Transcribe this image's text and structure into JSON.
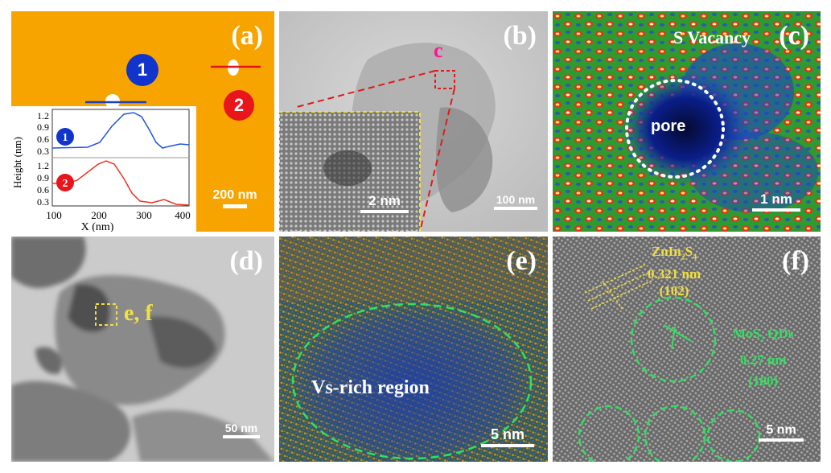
{
  "figure": {
    "panel_a": {
      "label": "(a)",
      "scale": "200 nm",
      "marker_1": "1",
      "marker_2": "2",
      "inset": {
        "ylabel": "Height (nm)",
        "xlabel": "X (nm)",
        "xticks": [
          "100",
          "200",
          "300",
          "400"
        ],
        "yticks_top": [
          "1.2",
          "0.9",
          "0.6",
          "0.3"
        ],
        "yticks_bottom": [
          "1.2",
          "0.9",
          "0.6",
          "0.3"
        ],
        "badge_1": "1",
        "badge_2": "2",
        "colors": {
          "profile_1": "#2255dd",
          "profile_2": "#ee3322"
        }
      }
    },
    "panel_b": {
      "label": "(b)",
      "marker": "c",
      "scale": "100 nm",
      "inset_scale": "2 nm"
    },
    "panel_c": {
      "label": "(c)",
      "title": "S Vacancy",
      "pore_label": "pore",
      "scale": "1 nm"
    },
    "panel_d": {
      "label": "(d)",
      "region_label": "e, f",
      "scale": "50 nm"
    },
    "panel_e": {
      "label": "(e)",
      "region_label": "Vs-rich region",
      "scale": "5 nm"
    },
    "panel_f": {
      "label": "(f)",
      "znins_line1": "ZnIn",
      "znins_sub1": "2",
      "znins_s": "S",
      "znins_sub2": "4",
      "znins_spacing": "0.321 nm",
      "znins_plane": "(102)",
      "mos_label": "MoS",
      "mos_sub": "2",
      "mos_suffix": " QDs",
      "mos_spacing": "0.27 nm",
      "mos_plane": "(100)",
      "scale": "5 nm"
    },
    "colors": {
      "panel_a_bg": "#f7a400",
      "accent_yellow": "#f0e040",
      "accent_green": "#40e060",
      "accent_magenta": "#ff1493"
    }
  }
}
